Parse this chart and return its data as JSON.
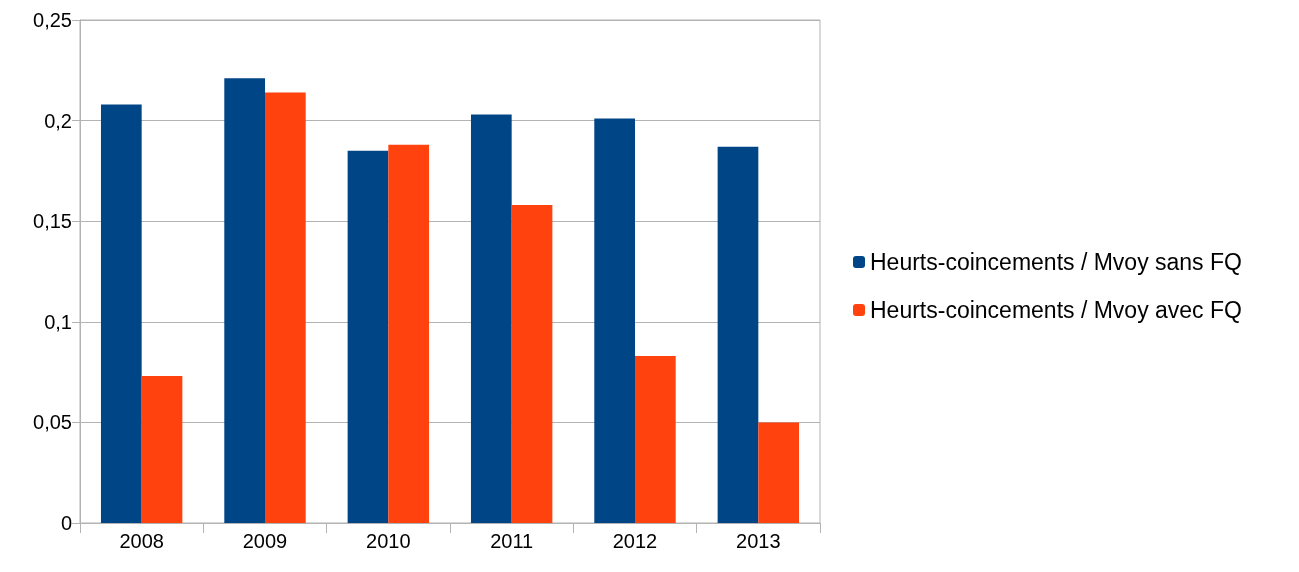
{
  "chart_data": {
    "type": "bar",
    "categories": [
      "2008",
      "2009",
      "2010",
      "2011",
      "2012",
      "2013"
    ],
    "series": [
      {
        "name": "Heurts-coincements / Mvoy sans FQ",
        "color": "#004586",
        "values": [
          0.208,
          0.221,
          0.185,
          0.203,
          0.201,
          0.187
        ]
      },
      {
        "name": "Heurts-coincements / Mvoy avec FQ",
        "color": "#ff420e",
        "values": [
          0.073,
          0.214,
          0.188,
          0.158,
          0.083,
          0.05
        ]
      }
    ],
    "ylim": [
      0,
      0.25
    ],
    "yticks": [
      0,
      {
        "value": 0.05,
        "label": "0,05"
      },
      {
        "value": 0.1,
        "label": "0,1"
      },
      {
        "value": 0.15,
        "label": "0,15"
      },
      {
        "value": 0.2,
        "label": "0,2"
      },
      {
        "value": 0.25,
        "label": "0,25"
      }
    ],
    "grid": "y",
    "legend": "right"
  }
}
